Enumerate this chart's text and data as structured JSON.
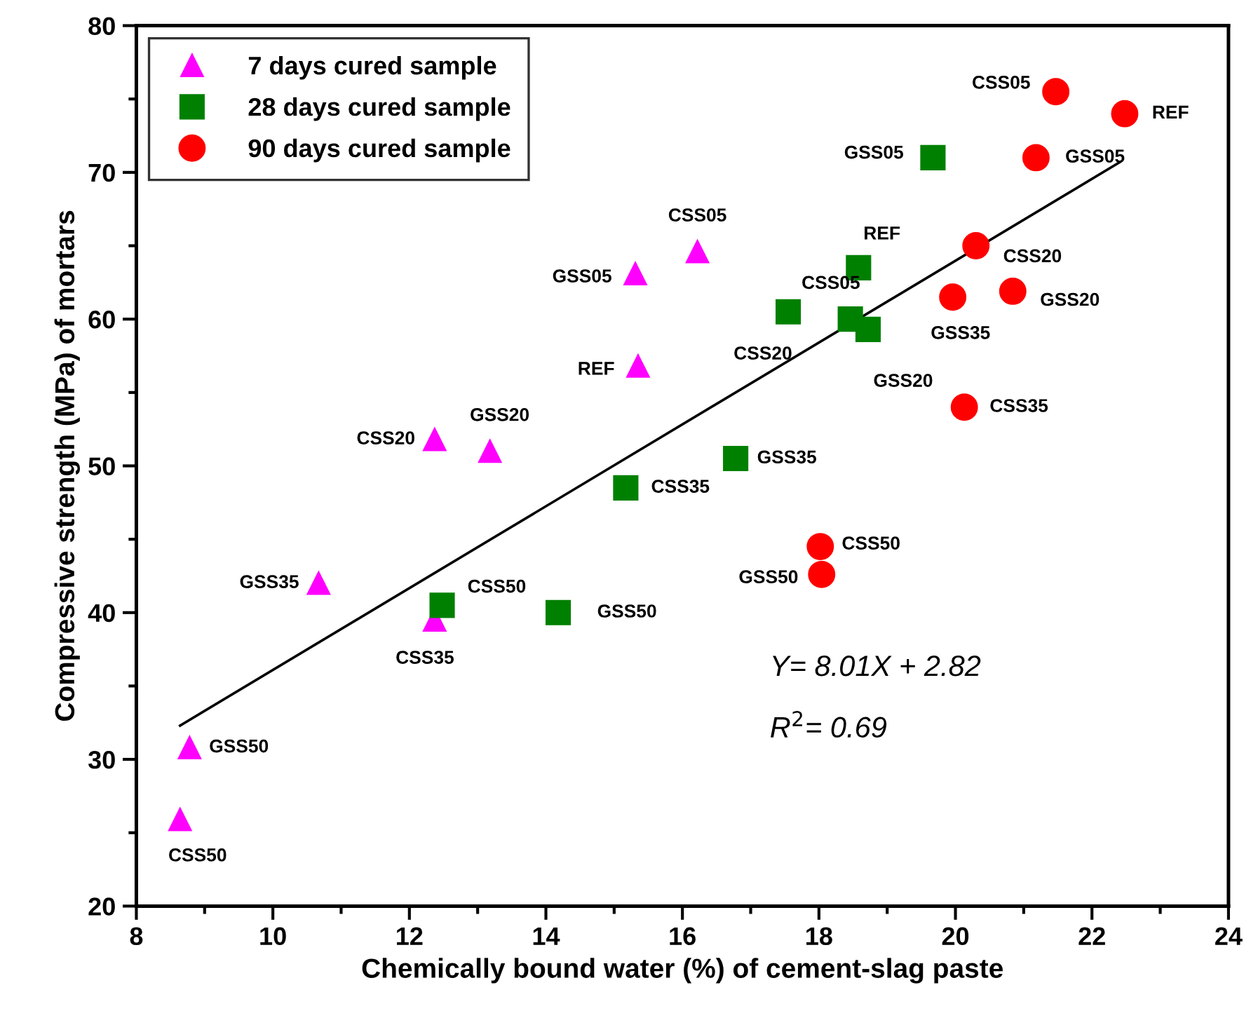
{
  "chart_data": {
    "type": "scatter",
    "xlabel": "Chemically bound water (%) of cement-slag paste",
    "ylabel": "Compressive strength (MPa) of mortars",
    "xlim": [
      8,
      24
    ],
    "xticks": [
      8,
      10,
      12,
      14,
      16,
      18,
      20,
      22,
      24
    ],
    "ylim": [
      20,
      80
    ],
    "yticks": [
      20,
      30,
      40,
      50,
      60,
      70,
      80
    ],
    "grid": false,
    "legend": "top left",
    "series": [
      {
        "name": "7 days cured sample",
        "color": "#ff00ff",
        "marker": "triangle",
        "x": [
          16.22,
          15.31,
          15.35,
          12.37,
          13.18,
          10.67,
          12.37,
          8.78,
          8.64
        ],
        "values": [
          64.6,
          63.1,
          56.8,
          51.8,
          51.0,
          42.0,
          39.5,
          30.8,
          25.9
        ]
      },
      {
        "name": "28 days cured sample",
        "color": "#008000",
        "marker": "square",
        "x": [
          12.48,
          14.18,
          15.17,
          16.78,
          17.55,
          18.46,
          18.72,
          18.58,
          19.67
        ],
        "values": [
          40.5,
          40.0,
          48.5,
          50.5,
          60.5,
          60.0,
          59.3,
          63.5,
          71.0
        ]
      },
      {
        "name": "90 days cured sample",
        "color": "#ff0000",
        "marker": "circle",
        "x": [
          21.47,
          22.48,
          21.18,
          20.3,
          20.84,
          19.96,
          20.13,
          18.02,
          18.04
        ],
        "values": [
          75.5,
          74.0,
          71.0,
          65.0,
          61.9,
          61.5,
          54.0,
          44.5,
          42.6
        ]
      },
      {
        "type": "line",
        "color": "#000000",
        "marker": "none",
        "line_style": "solid",
        "x": [
          8.64,
          22.41
        ],
        "values": [
          32.3,
          70.7
        ]
      }
    ],
    "annotations": [
      {
        "text": "CSS05",
        "x": 16.22,
        "y": 64.6
      },
      {
        "text": "GSS05",
        "x": 15.31,
        "y": 63.1
      },
      {
        "text": "REF",
        "x": 15.35,
        "y": 56.8
      },
      {
        "text": "CSS20",
        "x": 12.37,
        "y": 51.8
      },
      {
        "text": "GSS20",
        "x": 13.18,
        "y": 51.0
      },
      {
        "text": "GSS35",
        "x": 10.67,
        "y": 42.0
      },
      {
        "text": "CSS35",
        "x": 12.37,
        "y": 39.5
      },
      {
        "text": "GSS50",
        "x": 8.78,
        "y": 30.8
      },
      {
        "text": "CSS50",
        "x": 8.64,
        "y": 25.9
      },
      {
        "text": "CSS50",
        "x": 12.48,
        "y": 40.5
      },
      {
        "text": "GSS50",
        "x": 14.18,
        "y": 40.0
      },
      {
        "text": "CSS35",
        "x": 15.17,
        "y": 48.5
      },
      {
        "text": "GSS35",
        "x": 16.78,
        "y": 50.5
      },
      {
        "text": "CSS20",
        "x": 17.55,
        "y": 60.5
      },
      {
        "text": "CSS05",
        "x": 18.46,
        "y": 60.0
      },
      {
        "text": "GSS20",
        "x": 18.72,
        "y": 59.3
      },
      {
        "text": "REF",
        "x": 18.58,
        "y": 63.5
      },
      {
        "text": "GSS05",
        "x": 19.67,
        "y": 71.0
      },
      {
        "text": "CSS05",
        "x": 21.47,
        "y": 75.5
      },
      {
        "text": "REF",
        "x": 22.48,
        "y": 74.0
      },
      {
        "text": "GSS05",
        "x": 21.18,
        "y": 71.0
      },
      {
        "text": "CSS20",
        "x": 20.3,
        "y": 65.0
      },
      {
        "text": "GSS20",
        "x": 20.84,
        "y": 61.9
      },
      {
        "text": "GSS35",
        "x": 19.96,
        "y": 61.5
      },
      {
        "text": "CSS35",
        "x": 20.13,
        "y": 54.0
      },
      {
        "text": "CSS50",
        "x": 18.02,
        "y": 44.5
      },
      {
        "text": "GSS50",
        "x": 18.04,
        "y": 42.6
      },
      "Y= 8.01X + 2.82",
      "R$^{2}$= 0.69"
    ]
  }
}
